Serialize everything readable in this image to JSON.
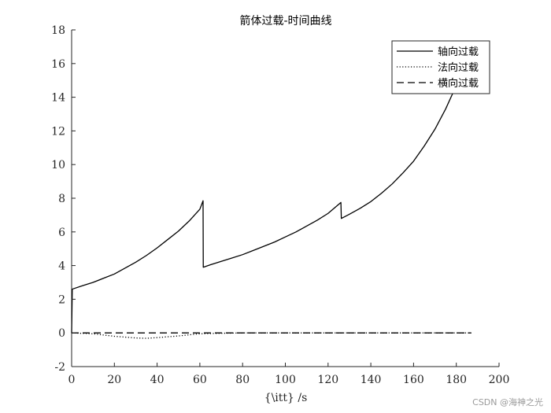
{
  "chart_data": {
    "type": "line",
    "title": "箭体过载-时间曲线",
    "xlabel": "{\\itt} /s",
    "ylabel": "",
    "xlim": [
      0,
      200
    ],
    "ylim": [
      -2,
      18
    ],
    "xticks": [
      0,
      20,
      40,
      60,
      80,
      100,
      120,
      140,
      160,
      180,
      200
    ],
    "yticks": [
      -2,
      0,
      2,
      4,
      6,
      8,
      10,
      12,
      14,
      16,
      18
    ],
    "grid": false,
    "legend_position": "top-right",
    "series": [
      {
        "name": "轴向过载",
        "line_style": "solid",
        "color": "#000000",
        "points": [
          [
            0,
            0
          ],
          [
            0.3,
            2.6
          ],
          [
            5,
            2.8
          ],
          [
            10,
            3.0
          ],
          [
            15,
            3.25
          ],
          [
            20,
            3.5
          ],
          [
            25,
            3.85
          ],
          [
            30,
            4.2
          ],
          [
            35,
            4.6
          ],
          [
            40,
            5.05
          ],
          [
            45,
            5.55
          ],
          [
            50,
            6.05
          ],
          [
            55,
            6.65
          ],
          [
            60,
            7.35
          ],
          [
            61.5,
            7.85
          ],
          [
            61.6,
            3.9
          ],
          [
            65,
            4.05
          ],
          [
            70,
            4.25
          ],
          [
            75,
            4.45
          ],
          [
            80,
            4.65
          ],
          [
            85,
            4.9
          ],
          [
            90,
            5.15
          ],
          [
            95,
            5.4
          ],
          [
            100,
            5.7
          ],
          [
            105,
            6.0
          ],
          [
            110,
            6.35
          ],
          [
            115,
            6.7
          ],
          [
            120,
            7.1
          ],
          [
            126,
            7.75
          ],
          [
            126.2,
            6.8
          ],
          [
            130,
            7.05
          ],
          [
            135,
            7.4
          ],
          [
            140,
            7.8
          ],
          [
            145,
            8.3
          ],
          [
            150,
            8.85
          ],
          [
            155,
            9.5
          ],
          [
            160,
            10.2
          ],
          [
            165,
            11.1
          ],
          [
            170,
            12.1
          ],
          [
            175,
            13.3
          ],
          [
            180,
            14.7
          ],
          [
            183,
            15.4
          ]
        ]
      },
      {
        "name": "法向过载",
        "line_style": "dotted",
        "color": "#000000",
        "points": [
          [
            0,
            0
          ],
          [
            10,
            -0.05
          ],
          [
            20,
            -0.2
          ],
          [
            30,
            -0.3
          ],
          [
            35,
            -0.32
          ],
          [
            40,
            -0.28
          ],
          [
            50,
            -0.18
          ],
          [
            60,
            -0.05
          ],
          [
            70,
            -0.02
          ],
          [
            80,
            0
          ],
          [
            120,
            0
          ],
          [
            160,
            0
          ],
          [
            187,
            0
          ]
        ]
      },
      {
        "name": "横向过载",
        "line_style": "dashed",
        "color": "#000000",
        "points": [
          [
            0,
            0
          ],
          [
            187,
            0
          ]
        ]
      }
    ]
  },
  "watermark": "CSDN @海神之光"
}
